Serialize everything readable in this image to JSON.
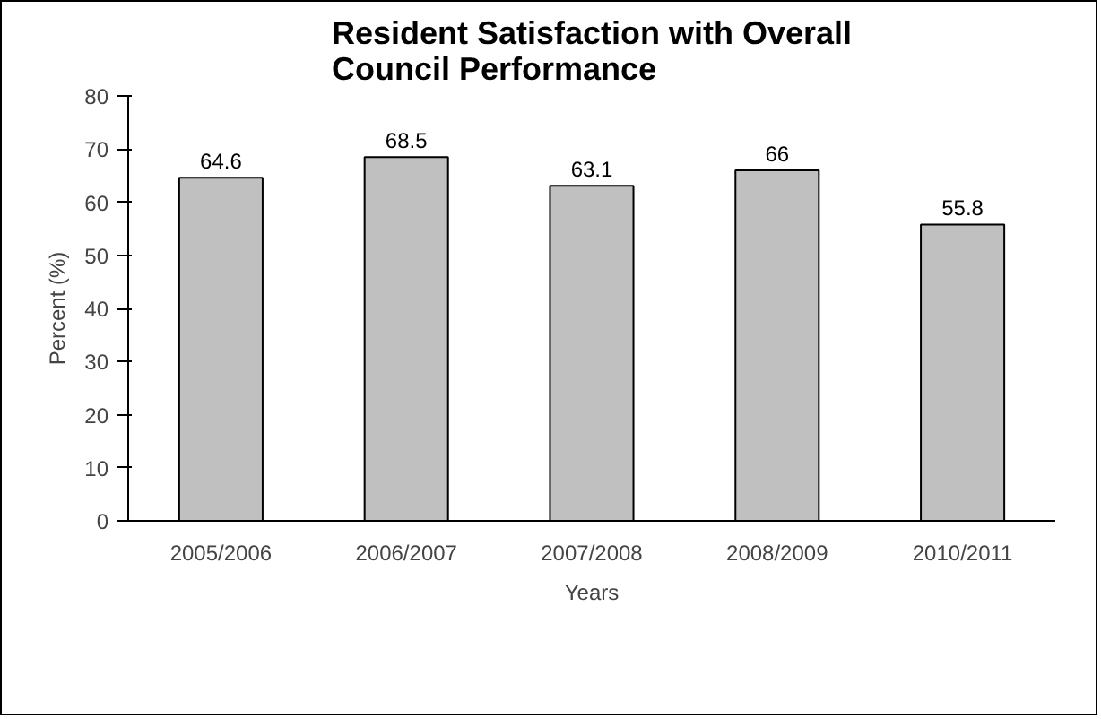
{
  "chart_data": {
    "type": "bar",
    "title": "Resident Satisfaction with Overall\nCouncil Performance",
    "xlabel": "Years",
    "ylabel": "Percent (%)",
    "categories": [
      "2005/2006",
      "2006/2007",
      "2007/2008",
      "2008/2009",
      "2010/2011"
    ],
    "values": [
      64.6,
      68.5,
      63.1,
      66,
      55.8
    ],
    "color": "#c0c0c0",
    "ylim": [
      0,
      80
    ],
    "yticks": [
      0,
      10,
      20,
      30,
      40,
      50,
      60,
      70,
      80
    ],
    "data_labels": true,
    "grid": false
  }
}
